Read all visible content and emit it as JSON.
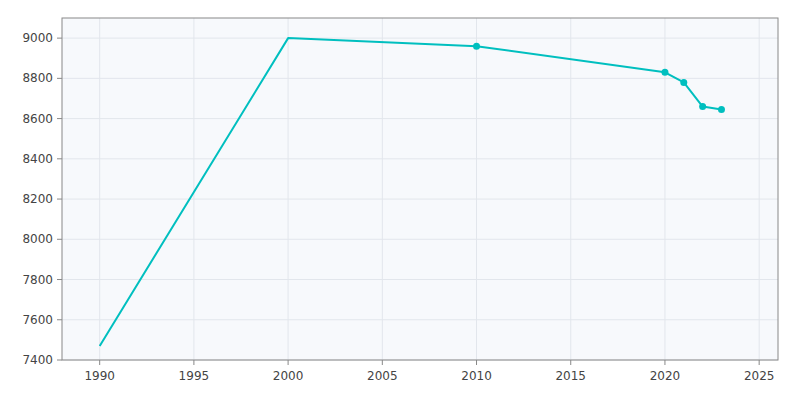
{
  "chart_data": {
    "type": "line",
    "x": [
      1990,
      2000,
      2010,
      2020,
      2021,
      2022,
      2023
    ],
    "series": [
      {
        "values": [
          7470,
          9000,
          8960,
          8830,
          8780,
          8660,
          8645
        ],
        "color": "#00BFBF",
        "marker": "none",
        "line_style": "solid"
      },
      {
        "values": [
          null,
          null,
          8960,
          8830,
          8780,
          8660,
          8645
        ],
        "color": "#00BFBF",
        "marker": "circle",
        "line_style": "none"
      }
    ],
    "xlim": [
      1988,
      2026
    ],
    "ylim": [
      7400,
      9100
    ],
    "xticks": [
      1990,
      1995,
      2000,
      2005,
      2010,
      2015,
      2020,
      2025
    ],
    "yticks": [
      7400,
      7600,
      7800,
      8000,
      8200,
      8400,
      8600,
      8800,
      9000
    ],
    "grid": true
  }
}
